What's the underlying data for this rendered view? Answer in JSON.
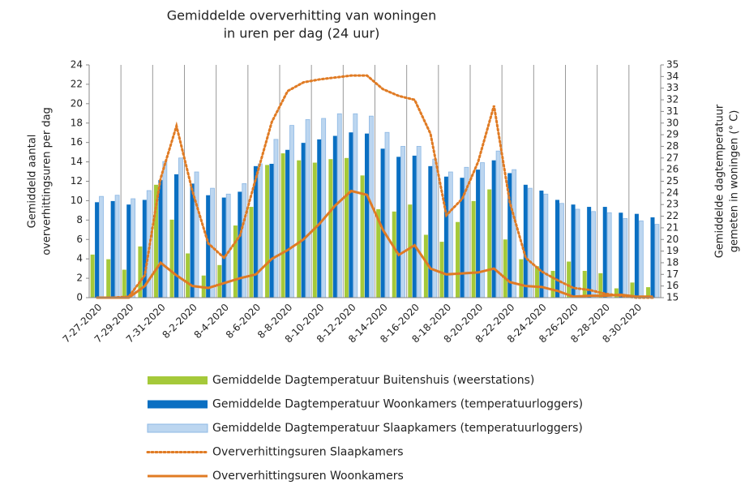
{
  "chart_data": {
    "type": "bar-line",
    "title": [
      "Gemiddelde oververhitting van woningen",
      "in uren per dag (24 uur)"
    ],
    "y_label": [
      "Gemiddeld aantal",
      "oververhittingsuren per dag"
    ],
    "y2_label": [
      "Gemiddelde dagtemperatuur",
      "gemeten in woningen (° C)"
    ],
    "categories": [
      "7-27-2020",
      null,
      "7-29-2020",
      null,
      "7-31-2020",
      null,
      "8-2-2020",
      null,
      "8-4-2020",
      null,
      "8-6-2020",
      null,
      "8-8-2020",
      null,
      "8-10-2020",
      null,
      "8-12-2020",
      null,
      "8-14-2020",
      null,
      "8-16-2020",
      null,
      "8-18-2020",
      null,
      "8-20-2020",
      null,
      "8-22-2020",
      null,
      "8-24-2020",
      null,
      "8-26-2020",
      null,
      "8-28-2020",
      null,
      "8-30-2020",
      null
    ],
    "ylim": [
      0,
      24
    ],
    "yticks": [
      0,
      2,
      4,
      6,
      8,
      10,
      12,
      14,
      16,
      18,
      20,
      22,
      24
    ],
    "y2lim": [
      15,
      35
    ],
    "y2ticks": [
      15,
      16,
      17,
      18,
      19,
      20,
      21,
      22,
      23,
      24,
      25,
      26,
      27,
      28,
      29,
      30,
      31,
      32,
      33,
      34,
      35
    ],
    "series": [
      {
        "name": "Gemiddelde Dagtemperatuur Buitenshuis (weerstations)",
        "type": "bar",
        "axis": "y2",
        "color": "#a5c93a",
        "values": [
          18.7,
          18.3,
          17.4,
          19.4,
          24.7,
          21.7,
          18.8,
          16.9,
          17.8,
          21.2,
          22.8,
          26.4,
          27.4,
          26.8,
          26.6,
          26.9,
          27.0,
          25.5,
          22.6,
          22.4,
          23.0,
          20.4,
          19.8,
          21.5,
          23.3,
          24.3,
          20.0,
          18.3,
          17.7,
          17.3,
          18.1,
          17.3,
          17.1,
          15.8,
          16.3,
          15.9
        ]
      },
      {
        "name": "Gemiddelde Dagtemperatuur Woonkamers (temperatuurloggers)",
        "type": "bar",
        "axis": "y2",
        "color": "#0a6fc2",
        "values": [
          23.2,
          23.3,
          23.0,
          23.4,
          25.1,
          25.6,
          24.8,
          23.8,
          23.6,
          24.1,
          26.3,
          26.5,
          27.7,
          28.3,
          28.6,
          28.9,
          29.2,
          29.1,
          27.8,
          27.1,
          27.2,
          26.3,
          25.4,
          25.3,
          26.0,
          26.8,
          25.7,
          24.7,
          24.2,
          23.4,
          23.0,
          22.8,
          22.8,
          22.3,
          22.2,
          21.9
        ]
      },
      {
        "name": "Gemiddelde Dagtemperatuur Slaapkamers (temperatuurloggers)",
        "type": "bar",
        "axis": "y2",
        "color": "#bcd6f0",
        "values": [
          23.7,
          23.8,
          23.5,
          24.2,
          26.7,
          27.0,
          25.8,
          24.4,
          23.9,
          24.8,
          26.5,
          28.6,
          29.8,
          30.3,
          30.4,
          30.8,
          30.8,
          30.6,
          29.2,
          28.0,
          28.0,
          26.9,
          25.8,
          26.2,
          26.6,
          27.6,
          26.0,
          24.4,
          23.9,
          23.1,
          22.6,
          22.4,
          22.3,
          21.8,
          21.6,
          21.3
        ]
      },
      {
        "name": "Oververhittingsuren Slaapkamers",
        "type": "line",
        "dash": "dotted",
        "color": "#e07b24",
        "values": [
          0,
          0,
          0.1,
          2.3,
          12.3,
          17.7,
          11,
          5.6,
          4.1,
          6.4,
          12.3,
          18.1,
          21.3,
          22.2,
          22.5,
          22.7,
          22.9,
          22.9,
          21.5,
          20.8,
          20.4,
          16.9,
          8.5,
          10.2,
          14,
          19.8,
          9.8,
          4.1,
          2.7,
          1.8,
          1.0,
          0.8,
          0.4,
          0.2,
          0,
          0
        ]
      },
      {
        "name": "Oververhittingsuren Woonkamers",
        "type": "line",
        "dash": "solid",
        "color": "#e07b24",
        "values": [
          0,
          0,
          0,
          1.2,
          3.6,
          2.3,
          1.2,
          1.0,
          1.5,
          2.0,
          2.4,
          4.0,
          4.9,
          6.0,
          7.6,
          9.5,
          11.0,
          10.6,
          7.0,
          4.4,
          5.4,
          3.0,
          2.4,
          2.5,
          2.6,
          3.0,
          1.6,
          1.2,
          1.1,
          0.7,
          0.1,
          0.2,
          0.2,
          0.3,
          0.1,
          0.1
        ]
      }
    ]
  }
}
